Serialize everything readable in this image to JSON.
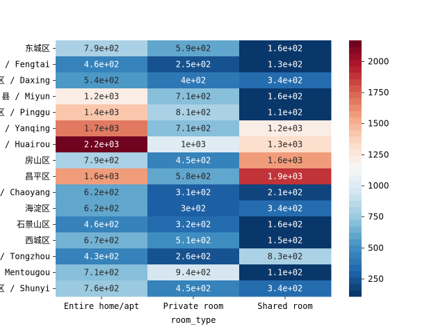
{
  "chart_data": {
    "type": "heatmap",
    "colormap": "RdBu_r",
    "rows": [
      "东城区",
      "区 / Fengtai",
      "区 / Daxing",
      "县 / Miyun",
      "区 / Pinggu",
      "/ Yanqing",
      "/ Huairou",
      "房山区",
      "昌平区",
      "/ Chaoyang",
      "海淀区",
      "石景山区",
      "西城区",
      "/ Tongzhou",
      "Mentougou",
      "区 / Shunyi"
    ],
    "columns": [
      "Entire home/apt",
      "Private room",
      "Shared room"
    ],
    "values": [
      [
        790,
        590,
        160
      ],
      [
        460,
        250,
        130
      ],
      [
        540,
        400,
        340
      ],
      [
        1200,
        710,
        160
      ],
      [
        1400,
        810,
        110
      ],
      [
        1700,
        710,
        1200
      ],
      [
        2200,
        1000,
        1300
      ],
      [
        790,
        450,
        1600
      ],
      [
        1600,
        580,
        1900
      ],
      [
        620,
        310,
        210
      ],
      [
        620,
        300,
        340
      ],
      [
        460,
        320,
        160
      ],
      [
        670,
        510,
        150
      ],
      [
        430,
        260,
        830
      ],
      [
        710,
        940,
        110
      ],
      [
        760,
        450,
        340
      ]
    ],
    "labels": [
      [
        "7.9e+02",
        "5.9e+02",
        "1.6e+02"
      ],
      [
        "4.6e+02",
        "2.5e+02",
        "1.3e+02"
      ],
      [
        "5.4e+02",
        "4e+02",
        "3.4e+02"
      ],
      [
        "1.2e+03",
        "7.1e+02",
        "1.6e+02"
      ],
      [
        "1.4e+03",
        "8.1e+02",
        "1.1e+02"
      ],
      [
        "1.7e+03",
        "7.1e+02",
        "1.2e+03"
      ],
      [
        "2.2e+03",
        "1e+03",
        "1.3e+03"
      ],
      [
        "7.9e+02",
        "4.5e+02",
        "1.6e+03"
      ],
      [
        "1.6e+03",
        "5.8e+02",
        "1.9e+03"
      ],
      [
        "6.2e+02",
        "3.1e+02",
        "2.1e+02"
      ],
      [
        "6.2e+02",
        "3e+02",
        "3.4e+02"
      ],
      [
        "4.6e+02",
        "3.2e+02",
        "1.6e+02"
      ],
      [
        "6.7e+02",
        "5.1e+02",
        "1.5e+02"
      ],
      [
        "4.3e+02",
        "2.6e+02",
        "8.3e+02"
      ],
      [
        "7.1e+02",
        "9.4e+02",
        "1.1e+02"
      ],
      [
        "7.6e+02",
        "4.5e+02",
        "3.4e+02"
      ]
    ],
    "xlabel": "room_type",
    "ylabel": "",
    "vmin": 110,
    "vmax": 2170,
    "colorbar_ticks": [
      250,
      500,
      750,
      1000,
      1250,
      1500,
      1750,
      2000
    ],
    "colorbar_tick_labels": [
      "250",
      "500",
      "750",
      "1000",
      "1250",
      "1500",
      "1750",
      "2000"
    ]
  }
}
